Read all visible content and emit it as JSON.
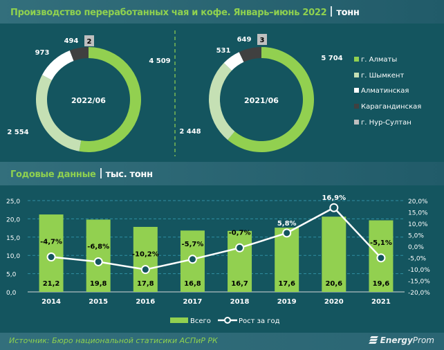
{
  "header": {
    "title": "Производство переработанных чая и кофе. Январь–июнь 2022",
    "unit": "тонн"
  },
  "section2": {
    "title": "Годовые данные",
    "unit": "тыс. тонн"
  },
  "colors": {
    "almaty": "#92d050",
    "shymkent": "#c5e0b4",
    "almatinskaya": "#ffffff",
    "karaganda": "#404040",
    "nursultan": "#bfbfbf",
    "bar": "#92d050",
    "line": "#ffffff"
  },
  "chart_data": [
    {
      "type": "pie",
      "variant": "donut",
      "center_label": "2022/06",
      "categories": [
        "г. Алматы",
        "г. Шымкент",
        "Алматинская",
        "Карагандинская",
        "г. Нур-Султан"
      ],
      "values": [
        4509,
        2554,
        973,
        494,
        2
      ],
      "labels": [
        "4 509",
        "2 554",
        "973",
        "494",
        "2"
      ]
    },
    {
      "type": "pie",
      "variant": "donut",
      "center_label": "2021/06",
      "categories": [
        "г. Алматы",
        "г. Шымкент",
        "Алматинская",
        "Карагандинская",
        "г. Нур-Султан"
      ],
      "values": [
        5704,
        2448,
        531,
        649,
        3
      ],
      "labels": [
        "5 704",
        "2 448",
        "531",
        "649",
        "3"
      ]
    },
    {
      "type": "bar",
      "categories": [
        "2014",
        "2015",
        "2016",
        "2017",
        "2018",
        "2019",
        "2020",
        "2021"
      ],
      "series": [
        {
          "name": "Всего",
          "type": "bar",
          "axis": "left",
          "values": [
            21.2,
            19.8,
            17.8,
            16.8,
            16.7,
            17.6,
            20.6,
            19.6
          ],
          "labels": [
            "21,2",
            "19,8",
            "17,8",
            "16,8",
            "16,7",
            "17,6",
            "20,6",
            "19,6"
          ]
        },
        {
          "name": "Рост за год",
          "type": "line",
          "axis": "right",
          "values": [
            -4.7,
            -6.8,
            -10.2,
            -5.7,
            -0.7,
            5.8,
            16.9,
            -5.1
          ],
          "labels": [
            "-4,7%",
            "-6,8%",
            "-10,2%",
            "-5,7%",
            "-0,7%",
            "5,8%",
            "16,9%",
            "-5,1%"
          ]
        }
      ],
      "ylim": [
        0,
        25
      ],
      "y2lim": [
        -20,
        20
      ],
      "yticks": [
        "0,0",
        "5,0",
        "10,0",
        "15,0",
        "20,0",
        "25,0"
      ],
      "y2ticks": [
        "-20,0%",
        "-15,0%",
        "-10,0%",
        "-5,0%",
        "0,0%",
        "5,0%",
        "10,0%",
        "15,0%",
        "20,0%"
      ],
      "grid": true,
      "legend": "bottom"
    }
  ],
  "legend_items": [
    "г. Алматы",
    "г. Шымкент",
    "Алматинская",
    "Карагандинская",
    "г. Нур-Султан"
  ],
  "footer": {
    "source": "Источник: Бюро национальной статисики АСПиР РК",
    "logo_bold": "Energy",
    "logo_light": "Prom"
  }
}
